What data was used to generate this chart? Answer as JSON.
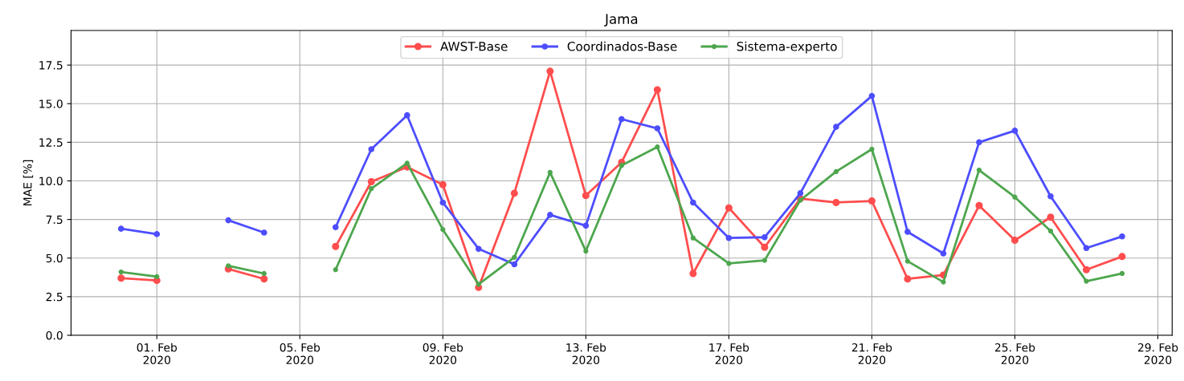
{
  "chart_data": {
    "type": "line",
    "title": "Jama",
    "ylabel": "MAE [%]",
    "x": [
      "2020-01-31",
      "2020-02-01",
      "2020-02-02",
      "2020-02-03",
      "2020-02-04",
      "2020-02-05",
      "2020-02-06",
      "2020-02-07",
      "2020-02-08",
      "2020-02-09",
      "2020-02-10",
      "2020-02-11",
      "2020-02-12",
      "2020-02-13",
      "2020-02-14",
      "2020-02-15",
      "2020-02-16",
      "2020-02-17",
      "2020-02-18",
      "2020-02-19",
      "2020-02-20",
      "2020-02-21",
      "2020-02-22",
      "2020-02-23",
      "2020-02-24",
      "2020-02-25",
      "2020-02-26",
      "2020-02-27",
      "2020-02-28"
    ],
    "series": [
      {
        "name": "AWST-Base",
        "color": "#ff4d4d",
        "values": [
          3.7,
          3.55,
          null,
          4.3,
          3.65,
          null,
          5.75,
          9.95,
          10.9,
          9.75,
          3.1,
          9.2,
          17.1,
          9.05,
          11.2,
          15.9,
          4.0,
          8.25,
          5.7,
          8.85,
          8.6,
          8.7,
          3.65,
          3.9,
          8.4,
          6.15,
          7.65,
          4.25,
          5.1
        ]
      },
      {
        "name": "Coordinados-Base",
        "color": "#4d4dff",
        "values": [
          6.9,
          6.55,
          null,
          7.45,
          6.65,
          null,
          7.0,
          12.05,
          14.25,
          8.6,
          5.6,
          4.6,
          7.8,
          7.1,
          14.0,
          13.4,
          8.6,
          6.3,
          6.35,
          9.2,
          13.5,
          15.5,
          6.7,
          5.3,
          12.5,
          13.25,
          9.0,
          5.65,
          6.4
        ]
      },
      {
        "name": "Sistema-experto",
        "color": "#4da64d",
        "values": [
          4.1,
          3.8,
          null,
          4.5,
          4.0,
          null,
          4.25,
          9.5,
          11.15,
          6.85,
          3.3,
          5.05,
          10.55,
          5.45,
          11.0,
          12.2,
          6.3,
          4.65,
          4.85,
          8.75,
          10.6,
          12.05,
          4.8,
          3.45,
          10.7,
          8.95,
          6.75,
          3.5,
          4.0
        ]
      }
    ],
    "xlim": [
      "2020-01-29T14:24",
      "2020-02-29T09:36"
    ],
    "xticks": [
      {
        "value": "2020-02-01",
        "label": "01. Feb\n2020"
      },
      {
        "value": "2020-02-05",
        "label": "05. Feb\n2020"
      },
      {
        "value": "2020-02-09",
        "label": "09. Feb\n2020"
      },
      {
        "value": "2020-02-13",
        "label": "13. Feb\n2020"
      },
      {
        "value": "2020-02-17",
        "label": "17. Feb\n2020"
      },
      {
        "value": "2020-02-21",
        "label": "21. Feb\n2020"
      },
      {
        "value": "2020-02-25",
        "label": "25. Feb\n2020"
      },
      {
        "value": "2020-02-29",
        "label": "29. Feb\n2020"
      }
    ],
    "ylim": [
      0,
      19.74
    ],
    "yticks": [
      {
        "value": 0,
        "label": "0.0"
      },
      2.5,
      {
        "value": 5,
        "label": "5.0"
      },
      7.5,
      {
        "value": 10,
        "label": "10.0"
      },
      12.5,
      {
        "value": 15,
        "label": "15.0"
      },
      17.5
    ],
    "grid": true,
    "legend": "top",
    "marker": "circle",
    "line_style": "solid"
  }
}
